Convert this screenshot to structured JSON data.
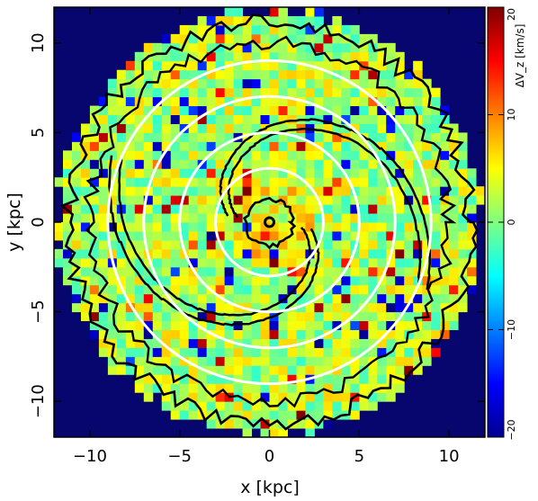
{
  "chart_data": {
    "type": "heatmap",
    "xlabel": "x [kpc]",
    "ylabel": "y [kpc]",
    "xlim": [
      -12,
      12
    ],
    "ylim": [
      -12,
      12
    ],
    "xticks": [
      -10,
      -5,
      0,
      5,
      10
    ],
    "yticks": [
      -10,
      -5,
      0,
      5,
      10
    ],
    "xtick_labels": [
      "−10",
      "−5",
      "0",
      "5",
      "10"
    ],
    "ytick_labels": [
      "−10",
      "−5",
      "0",
      "5",
      "10"
    ],
    "grid": false,
    "colorbar": {
      "title": "ΔV_z [km/s]",
      "range": [
        -20,
        20
      ],
      "ticks": [
        -20,
        -10,
        0,
        10,
        20
      ],
      "tick_labels": [
        "−20",
        "−10",
        "0",
        "10",
        "20"
      ],
      "colormap": "jet",
      "placement": "right"
    },
    "map": {
      "cell_size_kpc": 0.5,
      "disk_radius_kpc": 11.8,
      "outside_color": "#06066e",
      "typical_dVz_range": [
        -5,
        8
      ],
      "dominant_dVz": 2
    },
    "overlays": {
      "white_circles_radius_kpc": [
        3,
        5,
        7,
        9
      ],
      "white_circle_color": "#ffffff",
      "density_contours": {
        "color": "#000000",
        "center_marker": [
          0,
          0
        ],
        "center_ring_radius_kpc": 0.25,
        "inner_contour_radius_kpc": 1.3,
        "outer_contour_radius_kpc": 11.2,
        "spiral_arms": 2,
        "spiral_description": "two-armed logarithmic spiral density contours"
      }
    },
    "colors": {
      "background": "#ffffff",
      "axes": "#000000"
    }
  }
}
